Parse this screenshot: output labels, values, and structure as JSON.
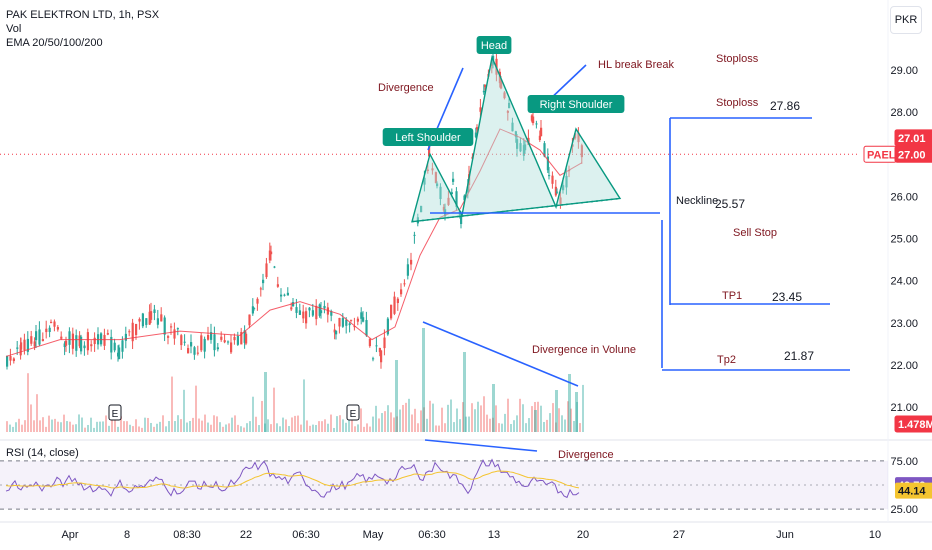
{
  "legend": {
    "symbol_line": "PAK ELEKTRON LTD, 1h, PSX",
    "vol_line": "Vol",
    "ema_line": "EMA 20/50/100/200"
  },
  "currency_button": "PKR",
  "rsi_legend": "RSI (14, close)",
  "colors": {
    "up": "#26a69a",
    "down": "#ef5350",
    "ema": "#f23645",
    "rsi": "#7e57c2",
    "rsi_ma": "#f4c430",
    "annotation_line": "#2962ff",
    "annotation_text": "#801922",
    "pattern_fill": "#b2dfdb",
    "label_bg": "#089981"
  },
  "chart_data": {
    "type": "candlestick",
    "price_axis": {
      "ticks": [
        "29.00",
        "28.00",
        "27.00",
        "26.00",
        "25.00",
        "24.00",
        "23.00",
        "22.00",
        "21.00"
      ],
      "ylim": [
        20.8,
        29.5
      ]
    },
    "time_axis": {
      "ticks": [
        "Apr",
        "8",
        "08:30",
        "22",
        "06:30",
        "May",
        "06:30",
        "13",
        "20",
        "27",
        "Jun",
        "10"
      ]
    },
    "price_badges": [
      {
        "text": "27.01",
        "color": "#f23645"
      },
      {
        "text": "PAEL",
        "color": "#f23645"
      },
      {
        "text": "27.00",
        "color": "#f23645"
      },
      {
        "text": "1.478M",
        "color": "#f23645"
      }
    ],
    "current_price": 27.0,
    "rsi_axis": {
      "ticks": [
        "75.00",
        "25.00"
      ],
      "ylim": [
        22,
        80
      ],
      "badges": [
        {
          "text": "49.79",
          "color": "#7e57c2"
        },
        {
          "text": "44.14",
          "color": "#f4c430"
        }
      ]
    },
    "earnings_markers": [
      "E",
      "E"
    ],
    "annotations": {
      "divergence_top": "Divergence",
      "left_shoulder": "Left Shoulder",
      "head": "Head",
      "right_shoulder": "Right Shoulder",
      "hl_break": "HL break Break",
      "stoploss_header": "Stoploss",
      "stoploss_label": "Stoploss",
      "stoploss_value": "27.86",
      "neckline_label": "Neckline",
      "neckline_value": "25.57",
      "sell_stop": "Sell Stop",
      "tp1_label": "TP1",
      "tp1_value": "23.45",
      "divergence_volume": "Divergence in Volune",
      "tp2_label": "Tp2",
      "tp2_value": "21.87",
      "divergence_rsi": "Divergence"
    },
    "levels": {
      "stoploss": 27.86,
      "neckline": 25.57,
      "tp1": 23.45,
      "tp2": 21.87
    }
  }
}
